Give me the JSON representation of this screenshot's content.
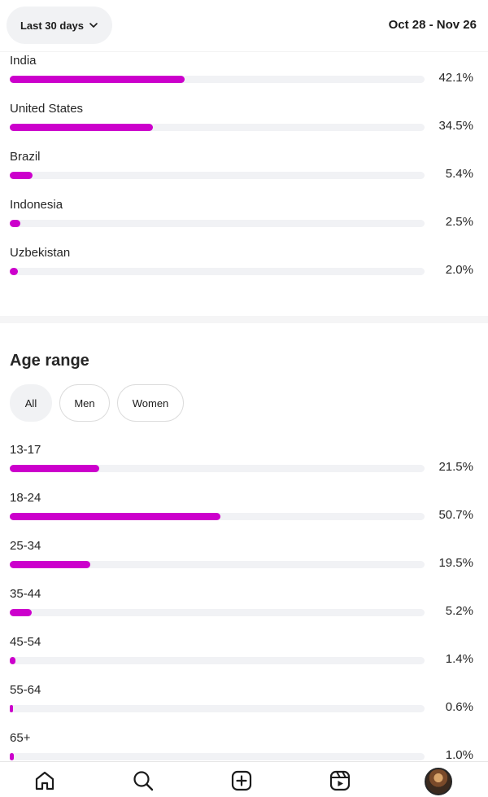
{
  "header": {
    "range_label": "Last 30 days",
    "date_range": "Oct 28 - Nov 26"
  },
  "countries": [
    {
      "label": "India",
      "value": "42.1%",
      "fraction": 0.421
    },
    {
      "label": "United States",
      "value": "34.5%",
      "fraction": 0.345
    },
    {
      "label": "Brazil",
      "value": "5.4%",
      "fraction": 0.054
    },
    {
      "label": "Indonesia",
      "value": "2.5%",
      "fraction": 0.025
    },
    {
      "label": "Uzbekistan",
      "value": "2.0%",
      "fraction": 0.02
    }
  ],
  "age": {
    "title": "Age range",
    "filters": [
      "All",
      "Men",
      "Women"
    ],
    "selected_filter": "All",
    "rows": [
      {
        "label": "13-17",
        "value": "21.5%",
        "fraction": 0.215
      },
      {
        "label": "18-24",
        "value": "50.7%",
        "fraction": 0.507
      },
      {
        "label": "25-34",
        "value": "19.5%",
        "fraction": 0.195
      },
      {
        "label": "35-44",
        "value": "5.2%",
        "fraction": 0.052
      },
      {
        "label": "45-54",
        "value": "1.4%",
        "fraction": 0.014
      },
      {
        "label": "55-64",
        "value": "0.6%",
        "fraction": 0.006
      },
      {
        "label": "65+",
        "value": "1.0%",
        "fraction": 0.01
      }
    ]
  },
  "nav": [
    "home-icon",
    "search-icon",
    "create-icon",
    "reels-icon",
    "profile-avatar"
  ],
  "colors": {
    "accent": "#cc00cc",
    "track": "#f1f2f5"
  }
}
